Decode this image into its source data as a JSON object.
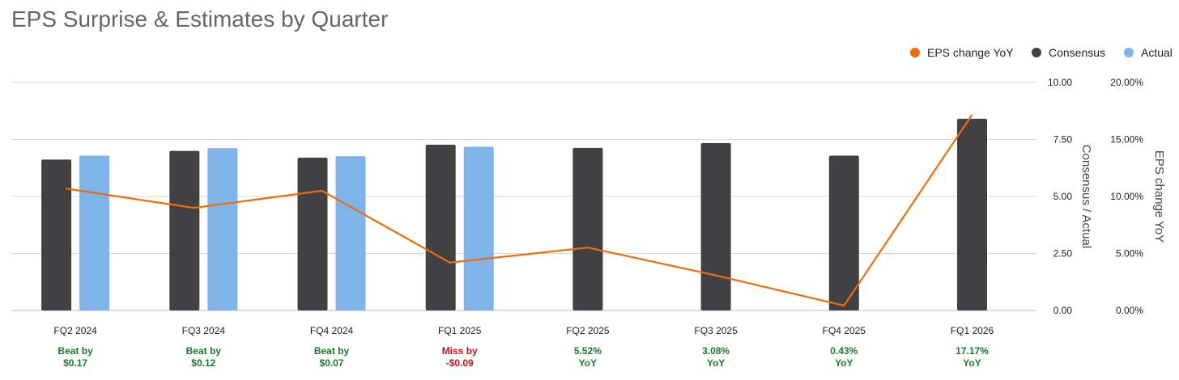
{
  "title": "EPS Surprise & Estimates by Quarter",
  "colors": {
    "consensus": "#414043",
    "actual": "#7fb4ea",
    "eps_change": "#ef6c0a",
    "beat": "#1a7a2c",
    "miss": "#c0121b",
    "grid": "#d9d9d9"
  },
  "chart_data": {
    "type": "bar",
    "categories": [
      "FQ2 2024",
      "FQ3 2024",
      "FQ4 2024",
      "FQ1 2025",
      "FQ2 2025",
      "FQ3 2025",
      "FQ4 2025",
      "FQ1 2026"
    ],
    "series": [
      {
        "name": "Consensus",
        "type": "bar",
        "axis": "left",
        "values": [
          6.62,
          7.0,
          6.7,
          7.27,
          7.13,
          7.34,
          6.79,
          8.41
        ]
      },
      {
        "name": "Actual",
        "type": "bar",
        "axis": "left",
        "values": [
          6.79,
          7.12,
          6.77,
          7.18,
          null,
          null,
          null,
          null
        ]
      },
      {
        "name": "EPS change YoY",
        "type": "line",
        "axis": "right",
        "values": [
          10.7,
          9.0,
          10.5,
          4.2,
          5.52,
          3.08,
          0.43,
          17.17
        ]
      }
    ],
    "left_axis": {
      "title": "Consensus / Actual",
      "ylim": [
        0,
        10
      ],
      "ticks": [
        "0.00",
        "2.50",
        "5.00",
        "7.50",
        "10.00"
      ]
    },
    "right_axis": {
      "title": "EPS change YoY",
      "ylim": [
        0,
        20
      ],
      "ticks": [
        "0.00%",
        "5.00%",
        "10.00%",
        "15.00%",
        "20.00%"
      ]
    },
    "annotations": [
      {
        "line1": "Beat by",
        "line2": "$0.17",
        "status": "beat"
      },
      {
        "line1": "Beat by",
        "line2": "$0.12",
        "status": "beat"
      },
      {
        "line1": "Beat by",
        "line2": "$0.07",
        "status": "beat"
      },
      {
        "line1": "Miss by",
        "line2": "-$0.09",
        "status": "miss"
      },
      {
        "line1": "5.52%",
        "line2": "YoY",
        "status": "beat"
      },
      {
        "line1": "3.08%",
        "line2": "YoY",
        "status": "beat"
      },
      {
        "line1": "0.43%",
        "line2": "YoY",
        "status": "beat"
      },
      {
        "line1": "17.17%",
        "line2": "YoY",
        "status": "beat"
      }
    ],
    "legend": [
      "EPS change YoY",
      "Consensus",
      "Actual"
    ],
    "legend_position": "top-right",
    "grid": true
  }
}
